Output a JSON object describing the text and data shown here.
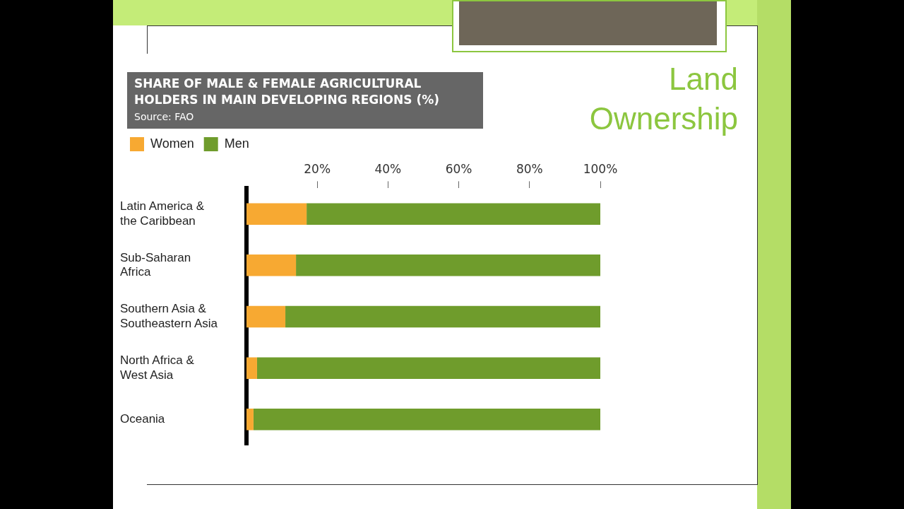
{
  "chart_data": {
    "type": "bar",
    "orientation": "horizontal",
    "stacked": true,
    "title": "SHARE OF MALE & FEMALE AGRICULTURAL HOLDERS IN MAIN DEVELOPING REGIONS (%)",
    "subtitle": "Land Ownership",
    "annotations": [
      "Source: FAO"
    ],
    "categories": [
      "Latin America & the Caribbean",
      "Sub-Saharan Africa",
      "Southern Asia & Southeastern Asia",
      "North Africa & West Asia",
      "Oceania"
    ],
    "series": [
      {
        "name": "Women",
        "color": "#f7a932",
        "values": [
          17,
          14,
          11,
          3,
          2
        ]
      },
      {
        "name": "Men",
        "color": "#6f9c2c",
        "values": [
          83,
          86,
          89,
          97,
          98
        ]
      }
    ],
    "xlim": [
      0,
      100
    ],
    "xticks": [
      {
        "value": 20,
        "label": "20%"
      },
      {
        "value": 40,
        "label": "40%"
      },
      {
        "value": 60,
        "label": "60%"
      },
      {
        "value": 80,
        "label": "80%"
      },
      {
        "value": 100,
        "label": "100%"
      }
    ],
    "grid": false,
    "legend": "top left"
  }
}
